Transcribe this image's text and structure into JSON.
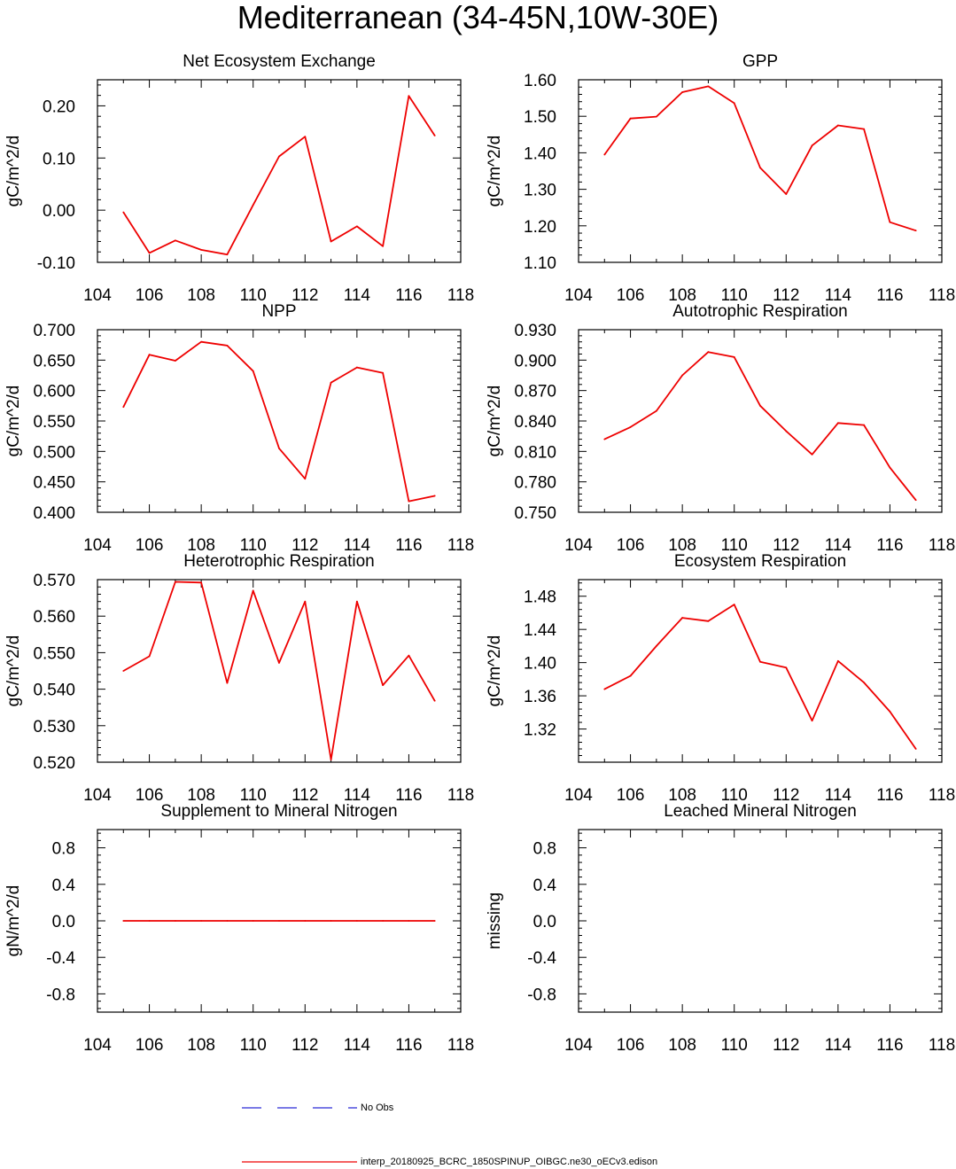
{
  "figure_title": "Mediterranean (34-45N,10W-30E)",
  "colors": {
    "model": "#ee0000",
    "obs": "#2b2bd6",
    "axis": "#000000"
  },
  "legend": {
    "obs_label": "No Obs",
    "model_label": "interp_20180925_BCRC_1850SPINUP_OIBGC.ne30_oECv3.edison"
  },
  "chart_data": [
    {
      "type": "line",
      "title": "Net Ecosystem Exchange",
      "ylabel": "gC/m^2/d",
      "xlabel": "",
      "xlim": [
        104,
        118
      ],
      "x_ticks": [
        104,
        106,
        108,
        110,
        112,
        114,
        116,
        118
      ],
      "ylim": [
        -0.1,
        0.25
      ],
      "y_ticks": [
        -0.1,
        0.0,
        0.1,
        0.2
      ],
      "y_tick_labels": [
        "-0.10",
        "0.00",
        "0.10",
        "0.20"
      ],
      "series": [
        {
          "name": "interp_20180925_BCRC_1850SPINUP_OIBGC.ne30_oECv3.edison",
          "x": [
            105,
            106,
            107,
            108,
            109,
            110,
            111,
            112,
            113,
            114,
            115,
            116,
            117
          ],
          "values": [
            -0.004,
            -0.082,
            -0.058,
            -0.076,
            -0.085,
            0.01,
            0.103,
            0.141,
            -0.06,
            -0.031,
            -0.069,
            0.219,
            0.143
          ]
        }
      ]
    },
    {
      "type": "line",
      "title": "GPP",
      "ylabel": "gC/m^2/d",
      "xlabel": "",
      "xlim": [
        104,
        118
      ],
      "x_ticks": [
        104,
        106,
        108,
        110,
        112,
        114,
        116,
        118
      ],
      "ylim": [
        1.1,
        1.6
      ],
      "y_ticks": [
        1.1,
        1.2,
        1.3,
        1.4,
        1.5,
        1.6
      ],
      "y_tick_labels": [
        "1.10",
        "1.20",
        "1.30",
        "1.40",
        "1.50",
        "1.60"
      ],
      "series": [
        {
          "name": "interp_20180925_BCRC_1850SPINUP_OIBGC.ne30_oECv3.edison",
          "x": [
            105,
            106,
            107,
            108,
            109,
            110,
            111,
            112,
            113,
            114,
            115,
            116,
            117
          ],
          "values": [
            1.395,
            1.494,
            1.499,
            1.566,
            1.582,
            1.536,
            1.359,
            1.287,
            1.42,
            1.475,
            1.465,
            1.21,
            1.187
          ]
        }
      ]
    },
    {
      "type": "line",
      "title": "NPP",
      "ylabel": "gC/m^2/d",
      "xlabel": "",
      "xlim": [
        104,
        118
      ],
      "x_ticks": [
        104,
        106,
        108,
        110,
        112,
        114,
        116,
        118
      ],
      "ylim": [
        0.4,
        0.7
      ],
      "y_ticks": [
        0.4,
        0.45,
        0.5,
        0.55,
        0.6,
        0.65,
        0.7
      ],
      "y_tick_labels": [
        "0.400",
        "0.450",
        "0.500",
        "0.550",
        "0.600",
        "0.650",
        "0.700"
      ],
      "series": [
        {
          "name": "interp_20180925_BCRC_1850SPINUP_OIBGC.ne30_oECv3.edison",
          "x": [
            105,
            106,
            107,
            108,
            109,
            110,
            111,
            112,
            113,
            114,
            115,
            116,
            117
          ],
          "values": [
            0.573,
            0.659,
            0.649,
            0.68,
            0.674,
            0.632,
            0.505,
            0.455,
            0.613,
            0.638,
            0.629,
            0.418,
            0.427
          ]
        }
      ]
    },
    {
      "type": "line",
      "title": "Autotrophic Respiration",
      "ylabel": "gC/m^2/d",
      "xlabel": "",
      "xlim": [
        104,
        118
      ],
      "x_ticks": [
        104,
        106,
        108,
        110,
        112,
        114,
        116,
        118
      ],
      "ylim": [
        0.75,
        0.93
      ],
      "y_ticks": [
        0.75,
        0.78,
        0.81,
        0.84,
        0.87,
        0.9,
        0.93
      ],
      "y_tick_labels": [
        "0.750",
        "0.780",
        "0.810",
        "0.840",
        "0.870",
        "0.900",
        "0.930"
      ],
      "series": [
        {
          "name": "interp_20180925_BCRC_1850SPINUP_OIBGC.ne30_oECv3.edison",
          "x": [
            105,
            106,
            107,
            108,
            109,
            110,
            111,
            112,
            113,
            114,
            115,
            116,
            117
          ],
          "values": [
            0.822,
            0.834,
            0.85,
            0.885,
            0.908,
            0.903,
            0.855,
            0.83,
            0.807,
            0.838,
            0.836,
            0.794,
            0.762
          ]
        }
      ]
    },
    {
      "type": "line",
      "title": "Heterotrophic Respiration",
      "ylabel": "gC/m^2/d",
      "xlabel": "",
      "xlim": [
        104,
        118
      ],
      "x_ticks": [
        104,
        106,
        108,
        110,
        112,
        114,
        116,
        118
      ],
      "ylim": [
        0.52,
        0.57
      ],
      "y_ticks": [
        0.52,
        0.53,
        0.54,
        0.55,
        0.56,
        0.57
      ],
      "y_tick_labels": [
        "0.520",
        "0.530",
        "0.540",
        "0.550",
        "0.560",
        "0.570"
      ],
      "series": [
        {
          "name": "interp_20180925_BCRC_1850SPINUP_OIBGC.ne30_oECv3.edison",
          "x": [
            105,
            106,
            107,
            108,
            109,
            110,
            111,
            112,
            113,
            114,
            115,
            116,
            117
          ],
          "values": [
            0.545,
            0.549,
            0.5694,
            0.5692,
            0.5417,
            0.567,
            0.5472,
            0.564,
            0.5207,
            0.564,
            0.5411,
            0.5492,
            0.5368
          ]
        }
      ]
    },
    {
      "type": "line",
      "title": "Ecosystem Respiration",
      "ylabel": "gC/m^2/d",
      "xlabel": "",
      "xlim": [
        104,
        118
      ],
      "x_ticks": [
        104,
        106,
        108,
        110,
        112,
        114,
        116,
        118
      ],
      "ylim": [
        1.28,
        1.5
      ],
      "y_ticks": [
        1.32,
        1.36,
        1.4,
        1.44,
        1.48
      ],
      "y_tick_labels": [
        "1.32",
        "1.36",
        "1.40",
        "1.44",
        "1.48"
      ],
      "series": [
        {
          "name": "interp_20180925_BCRC_1850SPINUP_OIBGC.ne30_oECv3.edison",
          "x": [
            105,
            106,
            107,
            108,
            109,
            110,
            111,
            112,
            113,
            114,
            115,
            116,
            117
          ],
          "values": [
            1.368,
            1.384,
            1.42,
            1.454,
            1.45,
            1.47,
            1.401,
            1.394,
            1.33,
            1.402,
            1.376,
            1.341,
            1.296
          ]
        }
      ]
    },
    {
      "type": "line",
      "title": "Supplement to Mineral Nitrogen",
      "ylabel": "gN/m^2/d",
      "xlabel": "",
      "xlim": [
        104,
        118
      ],
      "x_ticks": [
        104,
        106,
        108,
        110,
        112,
        114,
        116,
        118
      ],
      "ylim": [
        -1.0,
        1.0
      ],
      "y_ticks": [
        -0.8,
        -0.4,
        0.0,
        0.4,
        0.8
      ],
      "y_tick_labels": [
        "-0.8",
        "-0.4",
        "0.0",
        "0.4",
        "0.8"
      ],
      "series": [
        {
          "name": "interp_20180925_BCRC_1850SPINUP_OIBGC.ne30_oECv3.edison",
          "x": [
            105,
            106,
            107,
            108,
            109,
            110,
            111,
            112,
            113,
            114,
            115,
            116,
            117
          ],
          "values": [
            0,
            0,
            0,
            0,
            0,
            0,
            0,
            0,
            0,
            0,
            0,
            0,
            0
          ]
        }
      ]
    },
    {
      "type": "line",
      "title": "Leached Mineral Nitrogen",
      "ylabel": "missing",
      "xlabel": "",
      "xlim": [
        104,
        118
      ],
      "x_ticks": [
        104,
        106,
        108,
        110,
        112,
        114,
        116,
        118
      ],
      "ylim": [
        -1.0,
        1.0
      ],
      "y_ticks": [
        -0.8,
        -0.4,
        0.0,
        0.4,
        0.8
      ],
      "y_tick_labels": [
        "-0.8",
        "-0.4",
        "0.0",
        "0.4",
        "0.8"
      ],
      "series": []
    }
  ]
}
